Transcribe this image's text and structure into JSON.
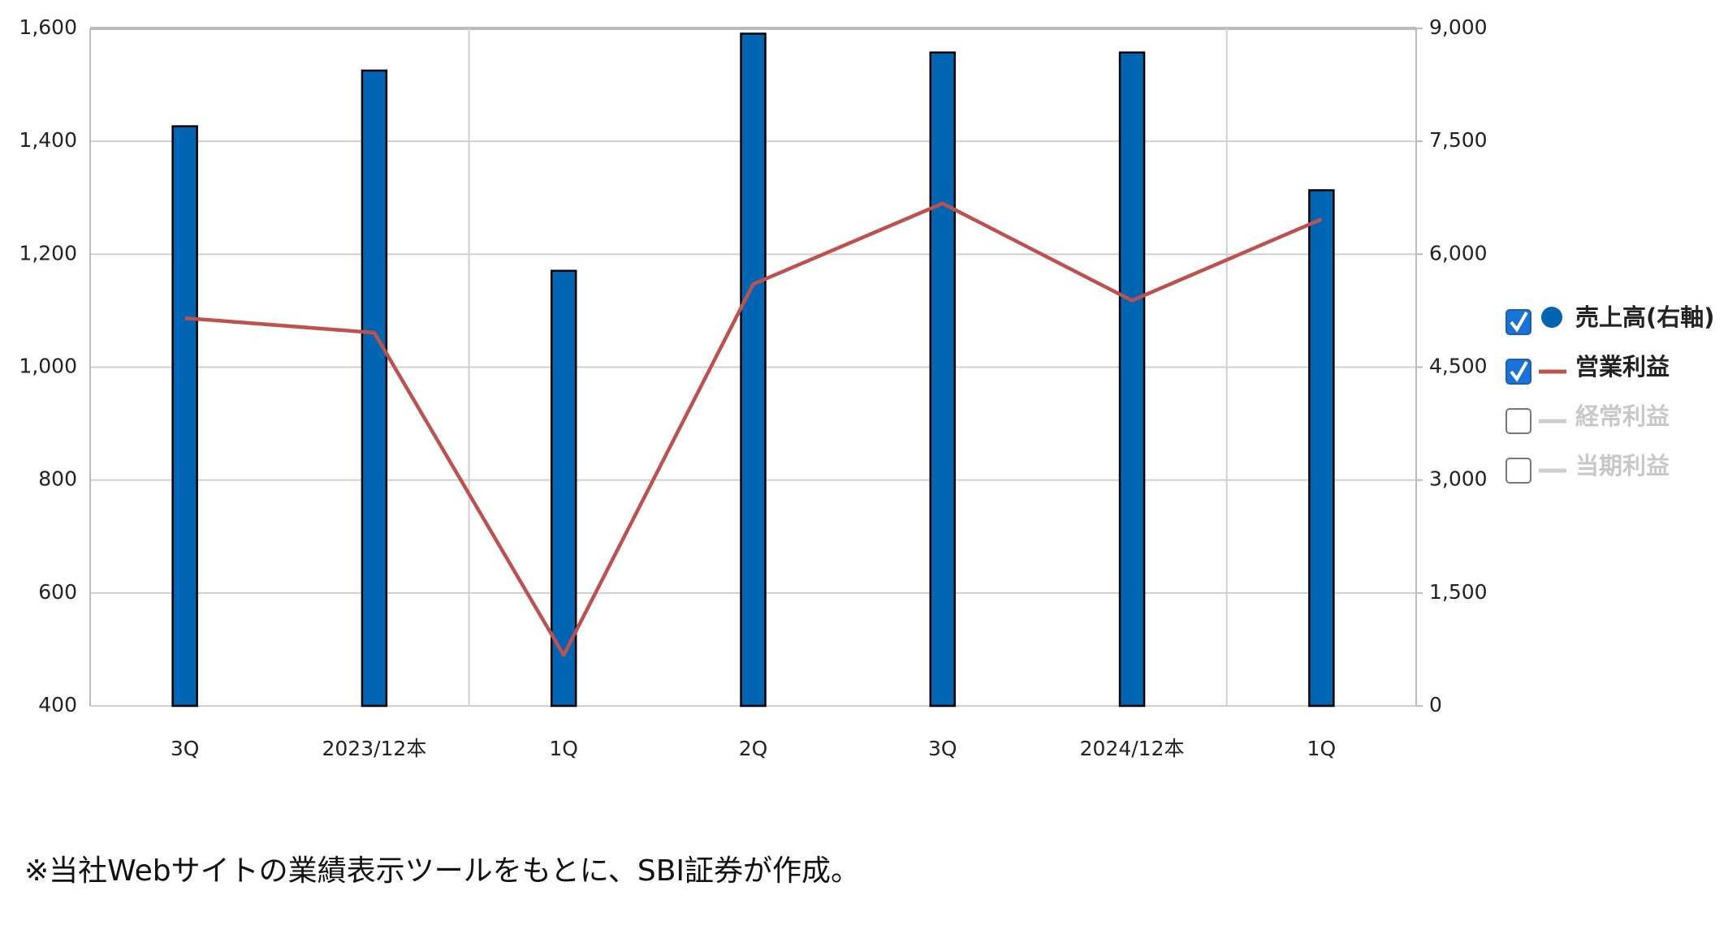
{
  "chart_data": {
    "type": "bar-line",
    "categories": [
      "3Q",
      "2023/12本",
      "1Q",
      "2Q",
      "3Q",
      "2024/12本",
      "1Q"
    ],
    "series": [
      {
        "name": "売上高(右軸)",
        "type": "bar",
        "axis": "y2",
        "color": "#0066b3",
        "checked": true,
        "values": [
          7700,
          8440,
          5780,
          8930,
          8680,
          8680,
          6850
        ]
      },
      {
        "name": "営業利益",
        "type": "line",
        "color": "#c0504d",
        "checked": true,
        "values": [
          1087,
          1061,
          490,
          1147,
          1290,
          1118,
          1262
        ]
      },
      {
        "name": "経常利益",
        "type": "line",
        "color": "#cccccc",
        "checked": false
      },
      {
        "name": "当期利益",
        "type": "line",
        "color": "#cccccc",
        "checked": false
      }
    ],
    "ylim": [
      400,
      1600
    ],
    "yticks": [
      {
        "value": 400,
        "label": "400"
      },
      {
        "value": 600,
        "label": "600"
      },
      {
        "value": 800,
        "label": "800"
      },
      {
        "value": 1000,
        "label": "1,000"
      },
      {
        "value": 1200,
        "label": "1,200"
      },
      {
        "value": 1400,
        "label": "1,400"
      },
      {
        "value": 1600,
        "label": "1,600"
      }
    ],
    "y2lim": [
      0,
      9000
    ],
    "y2ticks": [
      0,
      {
        "value": 1500,
        "label": "1,500"
      },
      {
        "value": 3000,
        "label": "3,000"
      },
      {
        "value": 4500,
        "label": "4,500"
      },
      {
        "value": 6000,
        "label": "6,000"
      },
      {
        "value": 7500,
        "label": "7,500"
      },
      {
        "value": 9000,
        "label": "9,000"
      }
    ],
    "grid": true,
    "legend": "right",
    "footnote": "※当社Webサイトの業績表示ツールをもとに、SBI証券が作成。"
  }
}
